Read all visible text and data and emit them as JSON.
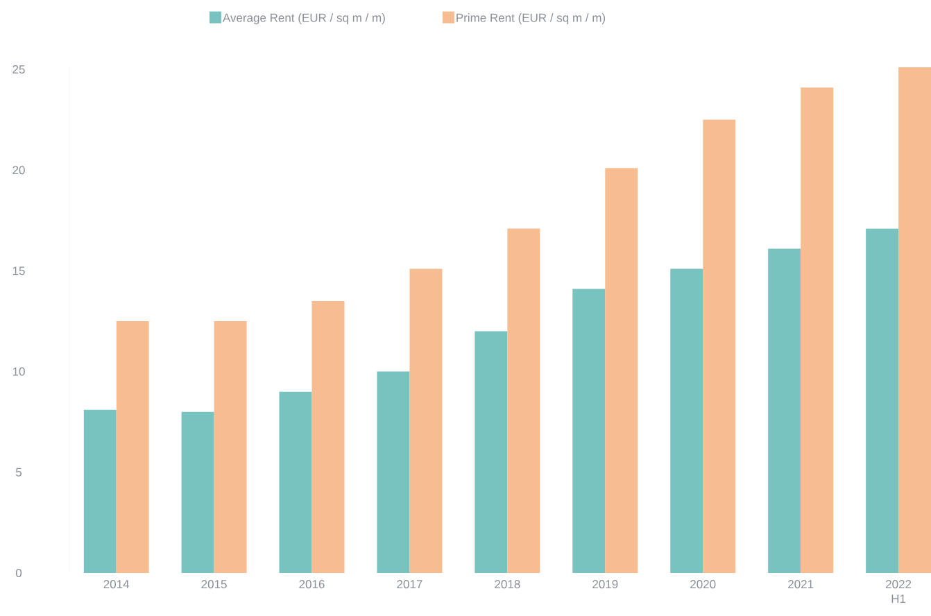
{
  "chart_data": {
    "type": "bar",
    "categories": [
      "2014",
      "2015",
      "2016",
      "2017",
      "2018",
      "2019",
      "2020",
      "2021",
      "2022 H1"
    ],
    "series": [
      {
        "name": "Average Rent (EUR / sq m / m)",
        "color": "#78c2c0",
        "values": [
          8.1,
          8.0,
          9.0,
          10.0,
          12.0,
          14.1,
          15.1,
          16.1,
          17.1
        ]
      },
      {
        "name": "Prime Rent (EUR / sq m / m)",
        "color": "#f7bd91",
        "values": [
          12.5,
          12.5,
          13.5,
          15.1,
          17.1,
          20.1,
          22.5,
          24.1,
          25.1
        ]
      }
    ],
    "ylim": [
      0,
      25.2
    ],
    "yticks": [
      0,
      5,
      10,
      15,
      20,
      25
    ],
    "legend": "top",
    "grid": false
  }
}
